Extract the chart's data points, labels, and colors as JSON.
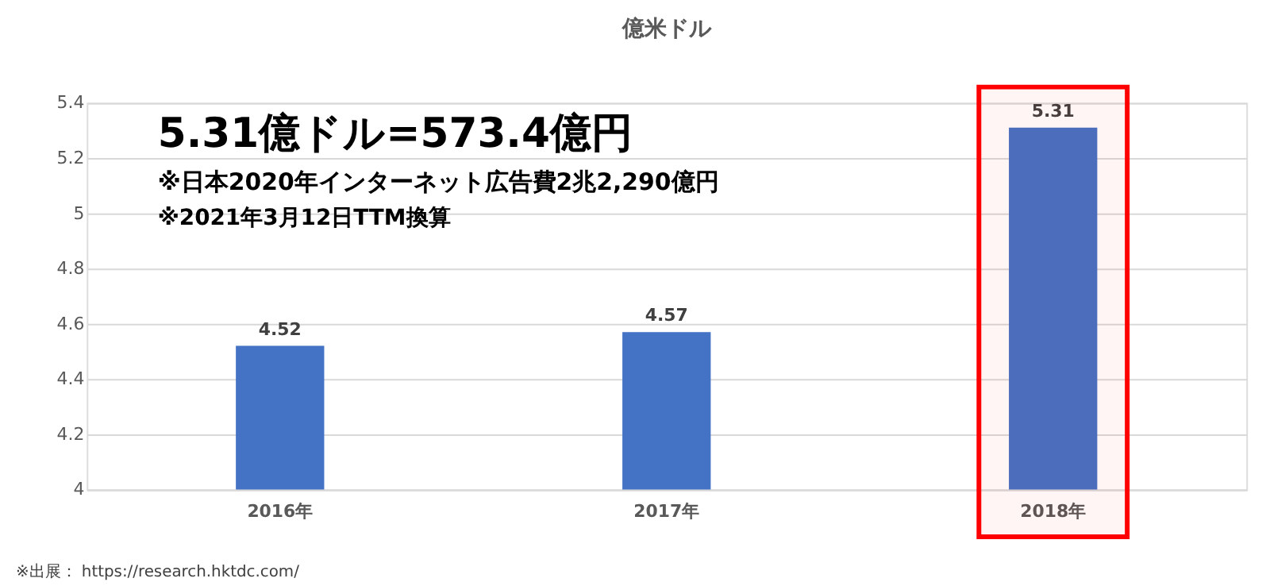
{
  "chart_data": {
    "type": "bar",
    "title": "億米ドル",
    "categories": [
      "2016年",
      "2017年",
      "2018年"
    ],
    "values": [
      4.52,
      4.57,
      5.31
    ],
    "color": "#4472c4",
    "data_labels": true,
    "ylim": [
      4,
      5.4
    ],
    "yticks": [
      4,
      4.2,
      4.4,
      4.6,
      4.8,
      5,
      5.2,
      5.4
    ],
    "grid": "y",
    "bands": [
      {
        "axis": "x",
        "from": "2018年",
        "to": "2018年",
        "color": "#ff0000"
      }
    ],
    "annotations": [
      "5.31億ドル=573.4億円",
      "※日本2020年インターネット広告費2兆2,290億円",
      "※2021年3月12日TTM換算",
      "※出展： https://research.hktdc.com/"
    ]
  }
}
